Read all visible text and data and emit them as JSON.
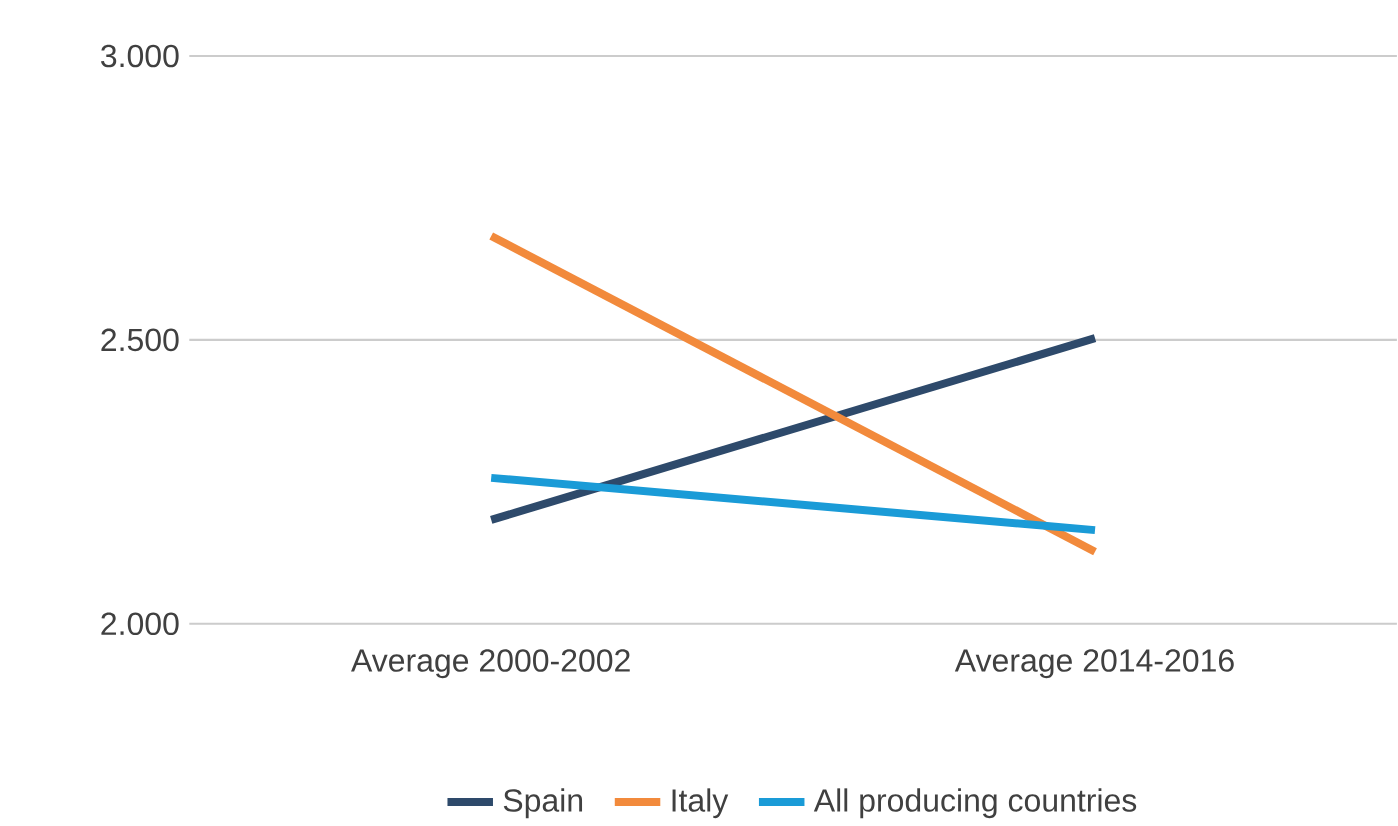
{
  "chart_data": {
    "type": "line",
    "categories": [
      "Average 2000-2002",
      "Average 2014-2016"
    ],
    "series": [
      {
        "name": "Spain",
        "color": "#2e4a6b",
        "values": [
          2183,
          2503
        ]
      },
      {
        "name": "Italy",
        "color": "#f28a3c",
        "values": [
          2683,
          2127
        ]
      },
      {
        "name": "All producing countries",
        "color": "#1a9bd7",
        "values": [
          2257,
          2165
        ]
      }
    ],
    "ylim": [
      2000,
      3000
    ],
    "yticks": [
      {
        "value": 2000,
        "label": "2.000"
      },
      {
        "value": 2500,
        "label": "2.500"
      },
      {
        "value": 3000,
        "label": "3.000"
      }
    ],
    "grid": "y",
    "legend": "bottom",
    "marker": "none",
    "line_style": "solid"
  }
}
